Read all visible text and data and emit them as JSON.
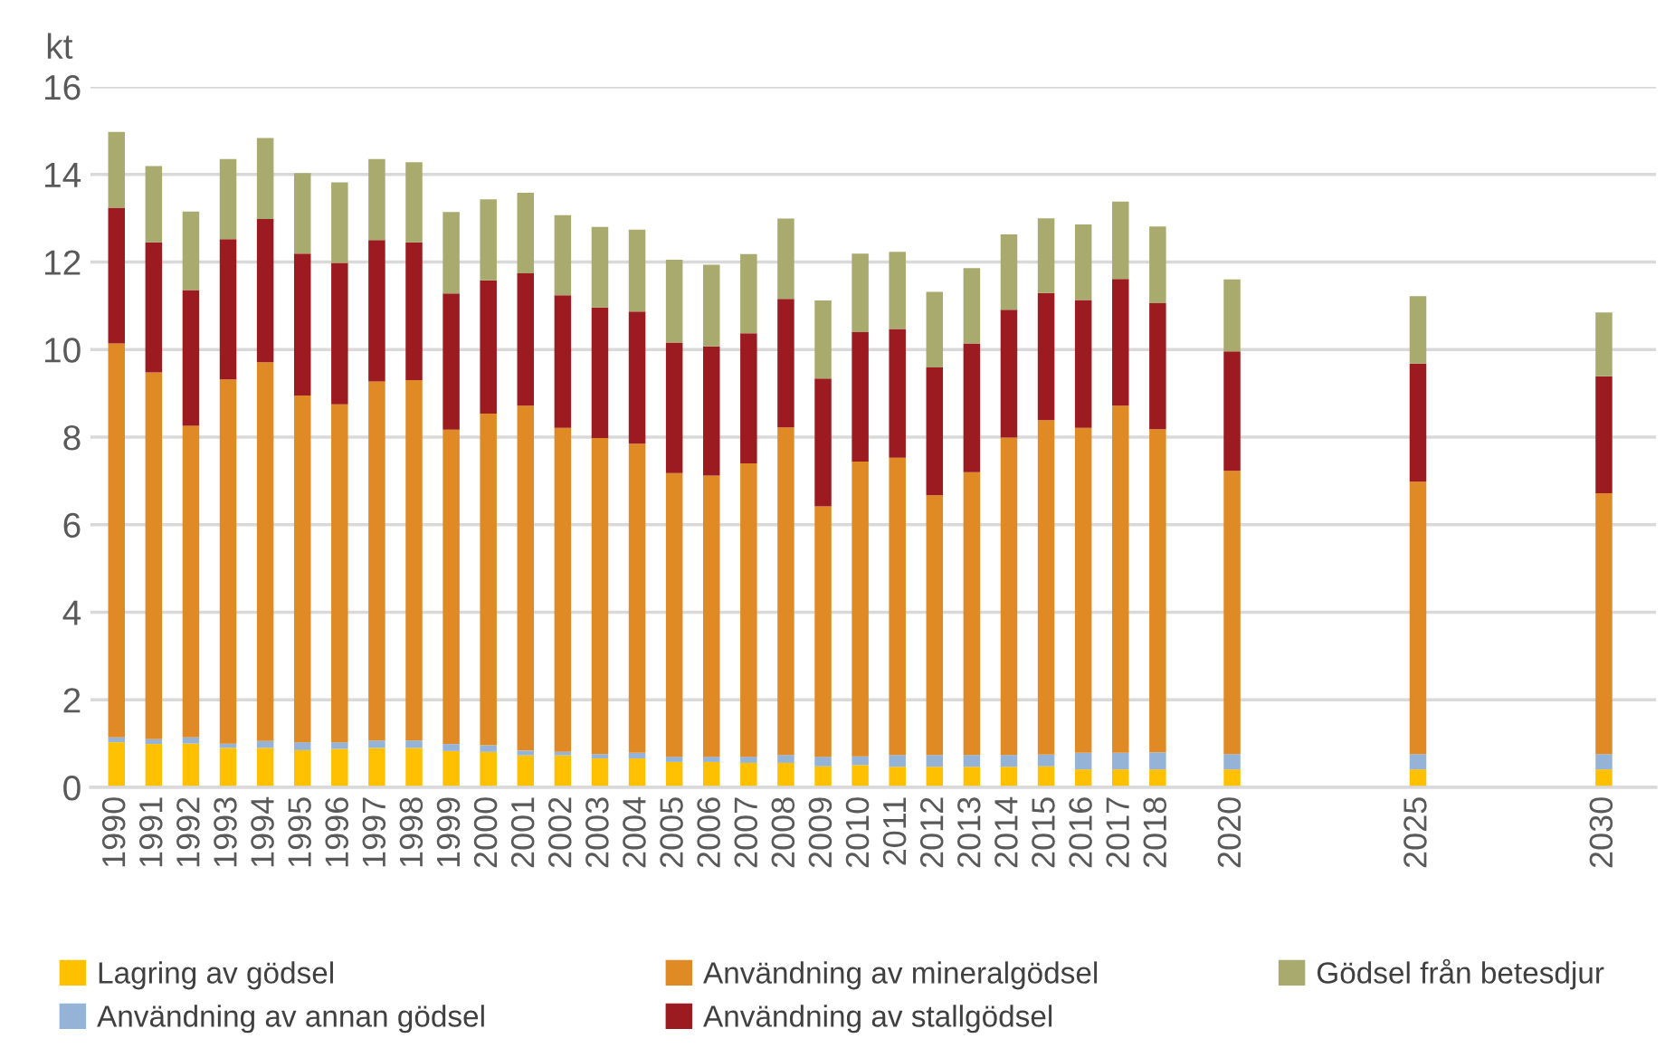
{
  "chart_data": {
    "type": "bar",
    "stacked": true,
    "ylabel": "kt",
    "x": [
      1990,
      1991,
      1992,
      1993,
      1994,
      1995,
      1996,
      1997,
      1998,
      1999,
      2000,
      2001,
      2002,
      2003,
      2004,
      2005,
      2006,
      2007,
      2008,
      2009,
      2010,
      2011,
      2012,
      2013,
      2014,
      2015,
      2016,
      2017,
      2018,
      2020,
      2025,
      2030
    ],
    "xlim": [
      1989.3,
      2031.4
    ],
    "xticks": [
      1990,
      1991,
      1992,
      1993,
      1994,
      1995,
      1996,
      1997,
      1998,
      1999,
      2000,
      2001,
      2002,
      2003,
      2004,
      2005,
      2006,
      2007,
      2008,
      2009,
      2010,
      2011,
      2012,
      2013,
      2014,
      2015,
      2016,
      2017,
      2018,
      2020,
      2025,
      2030
    ],
    "ylim": [
      0,
      16
    ],
    "yticks": [
      0,
      2,
      4,
      6,
      8,
      10,
      12,
      14,
      16
    ],
    "grid": "y",
    "legend": "bottom",
    "series": [
      {
        "name": "Lagring av gödsel",
        "color": "#ffc000",
        "values": [
          1.03,
          0.99,
          1.0,
          0.9,
          0.9,
          0.85,
          0.88,
          0.9,
          0.9,
          0.83,
          0.81,
          0.73,
          0.73,
          0.66,
          0.66,
          0.58,
          0.58,
          0.56,
          0.56,
          0.48,
          0.51,
          0.47,
          0.47,
          0.47,
          0.47,
          0.48,
          0.41,
          0.41,
          0.41,
          0.41,
          0.41,
          0.41
        ]
      },
      {
        "name": "Användning av annan gödsel",
        "color": "#95b3d7",
        "values": [
          0.11,
          0.11,
          0.14,
          0.1,
          0.16,
          0.18,
          0.15,
          0.17,
          0.17,
          0.16,
          0.15,
          0.11,
          0.08,
          0.1,
          0.13,
          0.12,
          0.12,
          0.14,
          0.18,
          0.22,
          0.2,
          0.27,
          0.27,
          0.27,
          0.27,
          0.27,
          0.38,
          0.38,
          0.39,
          0.35,
          0.35,
          0.35
        ]
      },
      {
        "name": "Användning av mineralgödsel",
        "color": "#e08a26",
        "values": [
          9.0,
          8.38,
          7.12,
          8.32,
          8.65,
          7.92,
          7.72,
          8.2,
          8.23,
          7.18,
          7.58,
          7.88,
          7.4,
          7.22,
          7.06,
          6.48,
          6.42,
          6.7,
          7.48,
          5.72,
          6.73,
          6.79,
          5.93,
          6.46,
          7.25,
          7.64,
          7.42,
          7.93,
          7.38,
          6.47,
          6.22,
          5.96
        ]
      },
      {
        "name": "Användning av stallgödsel",
        "color": "#9b1b20",
        "values": [
          3.1,
          2.97,
          3.1,
          3.2,
          3.27,
          3.24,
          3.23,
          3.23,
          3.15,
          3.11,
          3.04,
          3.02,
          3.03,
          2.98,
          3.02,
          2.98,
          2.95,
          2.97,
          2.94,
          2.92,
          2.96,
          2.94,
          2.92,
          2.94,
          2.92,
          2.9,
          2.92,
          2.89,
          2.88,
          2.73,
          2.7,
          2.67
        ]
      },
      {
        "name": "Gödsel från betesdjur",
        "color": "#a8aa6e",
        "values": [
          1.73,
          1.74,
          1.79,
          1.83,
          1.85,
          1.84,
          1.84,
          1.85,
          1.83,
          1.86,
          1.85,
          1.84,
          1.83,
          1.84,
          1.87,
          1.89,
          1.87,
          1.81,
          1.83,
          1.78,
          1.79,
          1.76,
          1.73,
          1.72,
          1.72,
          1.71,
          1.73,
          1.77,
          1.75,
          1.64,
          1.54,
          1.46
        ]
      }
    ]
  }
}
